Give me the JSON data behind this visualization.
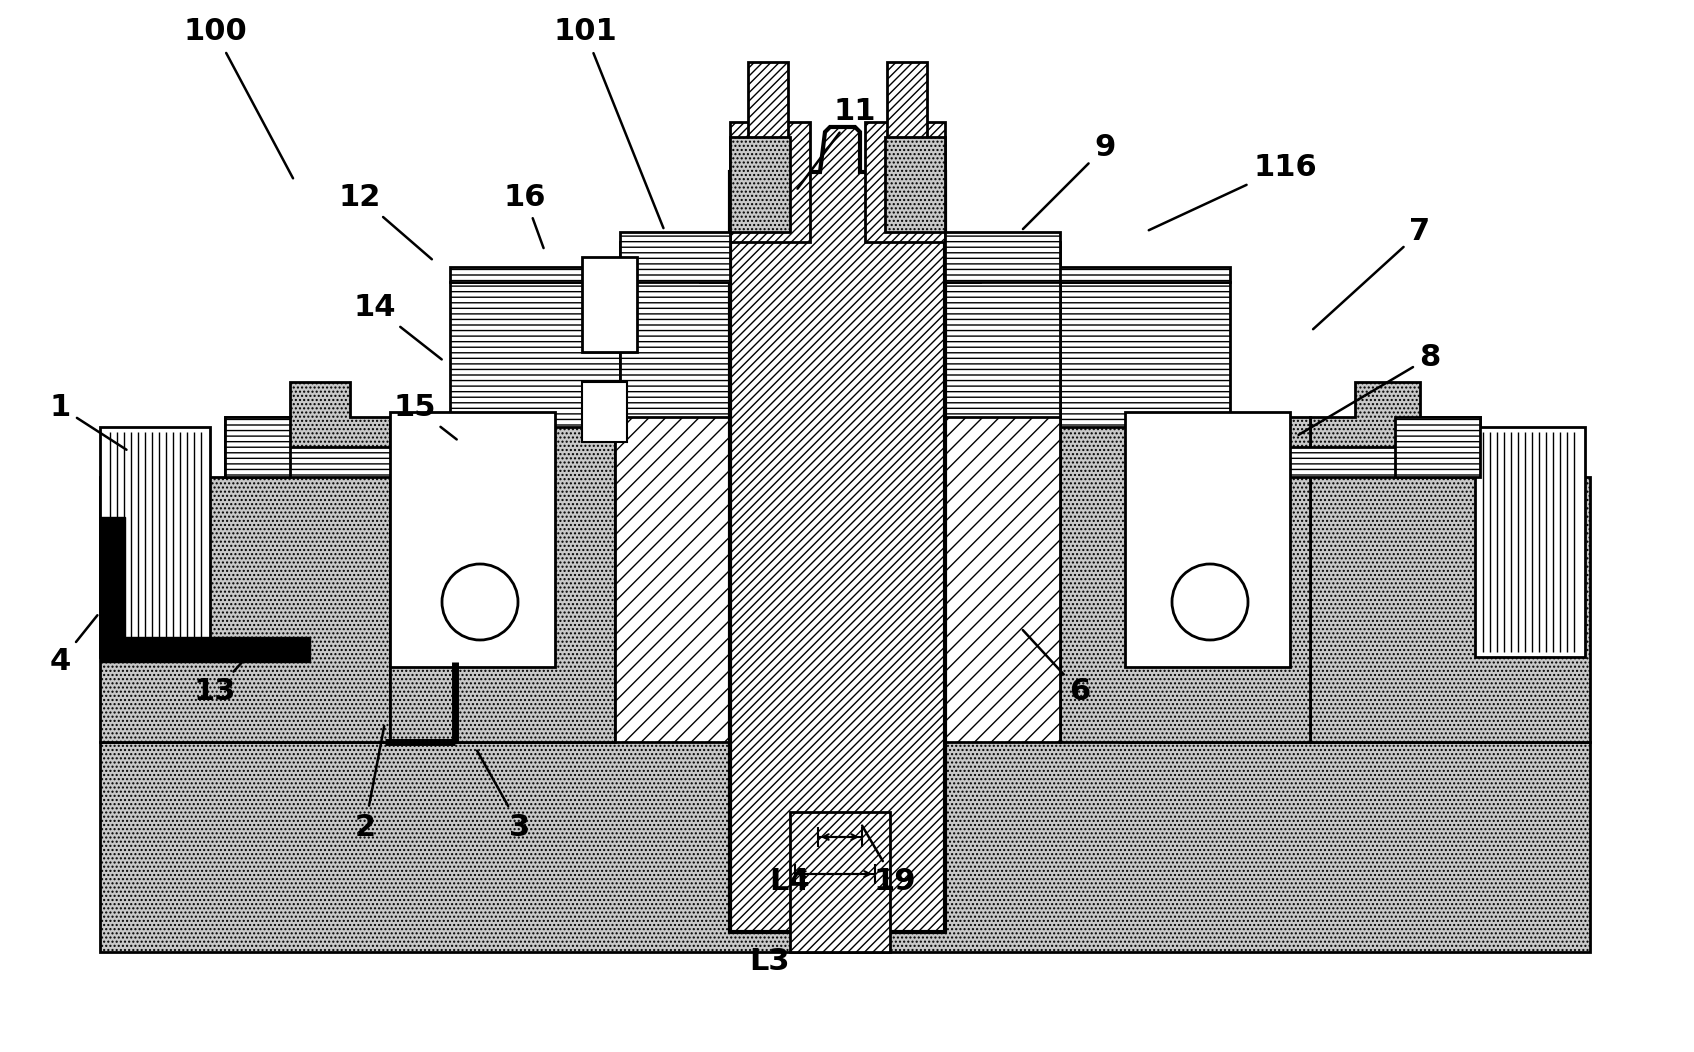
{
  "bg": "#ffffff",
  "lc": "#000000",
  "dot_fill": "#c0c0c0",
  "white": "#ffffff",
  "labels": [
    [
      "100",
      215,
      1020,
      295,
      870
    ],
    [
      "101",
      585,
      1020,
      665,
      820
    ],
    [
      "11",
      855,
      940,
      795,
      860
    ],
    [
      "9",
      1105,
      905,
      1020,
      820
    ],
    [
      "116",
      1285,
      885,
      1145,
      820
    ],
    [
      "7",
      1420,
      820,
      1310,
      720
    ],
    [
      "12",
      360,
      855,
      435,
      790
    ],
    [
      "16",
      525,
      855,
      545,
      800
    ],
    [
      "14",
      375,
      745,
      445,
      690
    ],
    [
      "8",
      1430,
      695,
      1295,
      615
    ],
    [
      "1",
      60,
      645,
      130,
      600
    ],
    [
      "15",
      415,
      645,
      460,
      610
    ],
    [
      "6",
      1080,
      360,
      1020,
      425
    ],
    [
      "4",
      60,
      390,
      100,
      440
    ],
    [
      "13",
      215,
      360,
      265,
      415
    ],
    [
      "2",
      365,
      225,
      385,
      330
    ],
    [
      "3",
      520,
      225,
      475,
      305
    ],
    [
      "19",
      895,
      170,
      860,
      230
    ],
    [
      "L4",
      790,
      170,
      820,
      210
    ],
    [
      "L3",
      770,
      90,
      800,
      155
    ]
  ]
}
